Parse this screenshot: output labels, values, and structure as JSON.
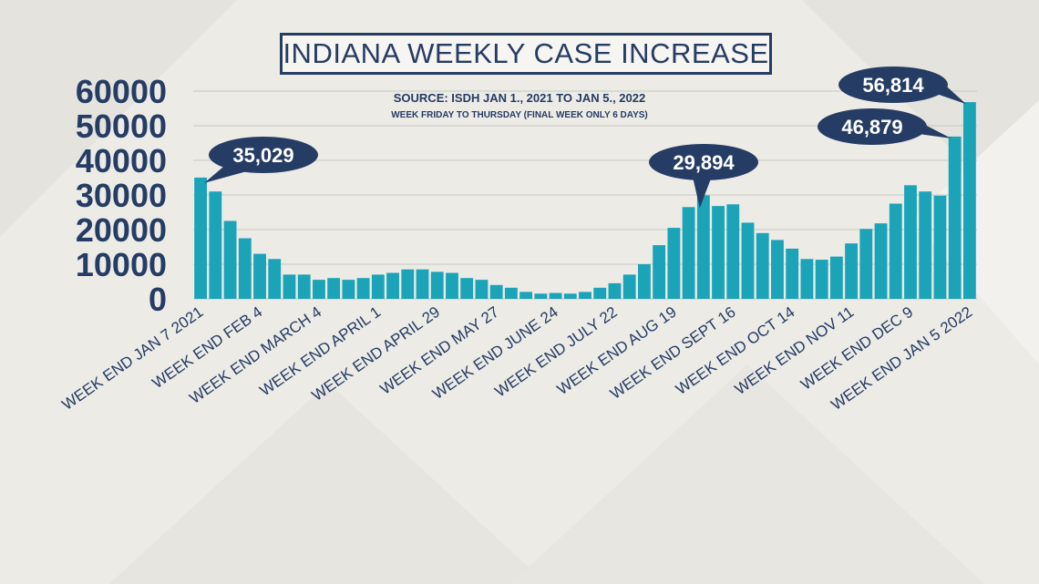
{
  "colors": {
    "bar": "#1ba3b8",
    "navy": "#253c64",
    "background": "#ecebe6",
    "grid": "#c9c9c4"
  },
  "chart_data": {
    "type": "bar",
    "title": "INDIANA WEEKLY CASE INCREASE",
    "subtitle": "SOURCE: ISDH JAN 1., 2021 TO JAN 5., 2022",
    "subtitle2": "WEEK FRIDAY TO THURSDAY (FINAL WEEK ONLY 6 DAYS)",
    "xlabel": "",
    "ylabel": "",
    "ylim": [
      0,
      60000
    ],
    "yticks": [
      "0",
      "10000",
      "20000",
      "30000",
      "40000",
      "50000",
      "60000"
    ],
    "grid": true,
    "x_tick_labels": [
      {
        "index": 0,
        "label": "WEEK END JAN 7 2021"
      },
      {
        "index": 4,
        "label": "WEEK END FEB 4"
      },
      {
        "index": 8,
        "label": "WEEK END MARCH 4"
      },
      {
        "index": 12,
        "label": "WEEK END APRIL 1"
      },
      {
        "index": 16,
        "label": "WEEK END APRIL 29"
      },
      {
        "index": 20,
        "label": "WEEK END MAY 27"
      },
      {
        "index": 24,
        "label": "WEEK END JUNE 24"
      },
      {
        "index": 28,
        "label": "WEEK END JULY 22"
      },
      {
        "index": 32,
        "label": "WEEK END AUG 19"
      },
      {
        "index": 36,
        "label": "WEEK END SEPT 16"
      },
      {
        "index": 40,
        "label": "WEEK END OCT 14"
      },
      {
        "index": 44,
        "label": "WEEK END NOV 11"
      },
      {
        "index": 48,
        "label": "WEEK END DEC 9"
      },
      {
        "index": 52,
        "label": "WEEK END JAN 5 2022"
      }
    ],
    "values": [
      35029,
      31000,
      22500,
      17500,
      13000,
      11500,
      7000,
      7000,
      5500,
      6000,
      5500,
      6000,
      7000,
      7500,
      8500,
      8500,
      7800,
      7500,
      6000,
      5500,
      4000,
      3200,
      2000,
      1500,
      1700,
      1500,
      2000,
      3200,
      4500,
      7000,
      10000,
      15500,
      20500,
      26500,
      29894,
      26800,
      27300,
      22000,
      19000,
      17000,
      14500,
      11500,
      11300,
      12200,
      16000,
      20200,
      21800,
      27500,
      32800,
      31000,
      29800,
      46879,
      56814
    ],
    "callouts": [
      {
        "index": 0,
        "label": "35,029"
      },
      {
        "index": 34,
        "label": "29,894"
      },
      {
        "index": 51,
        "label": "46,879"
      },
      {
        "index": 52,
        "label": "56,814"
      }
    ]
  }
}
